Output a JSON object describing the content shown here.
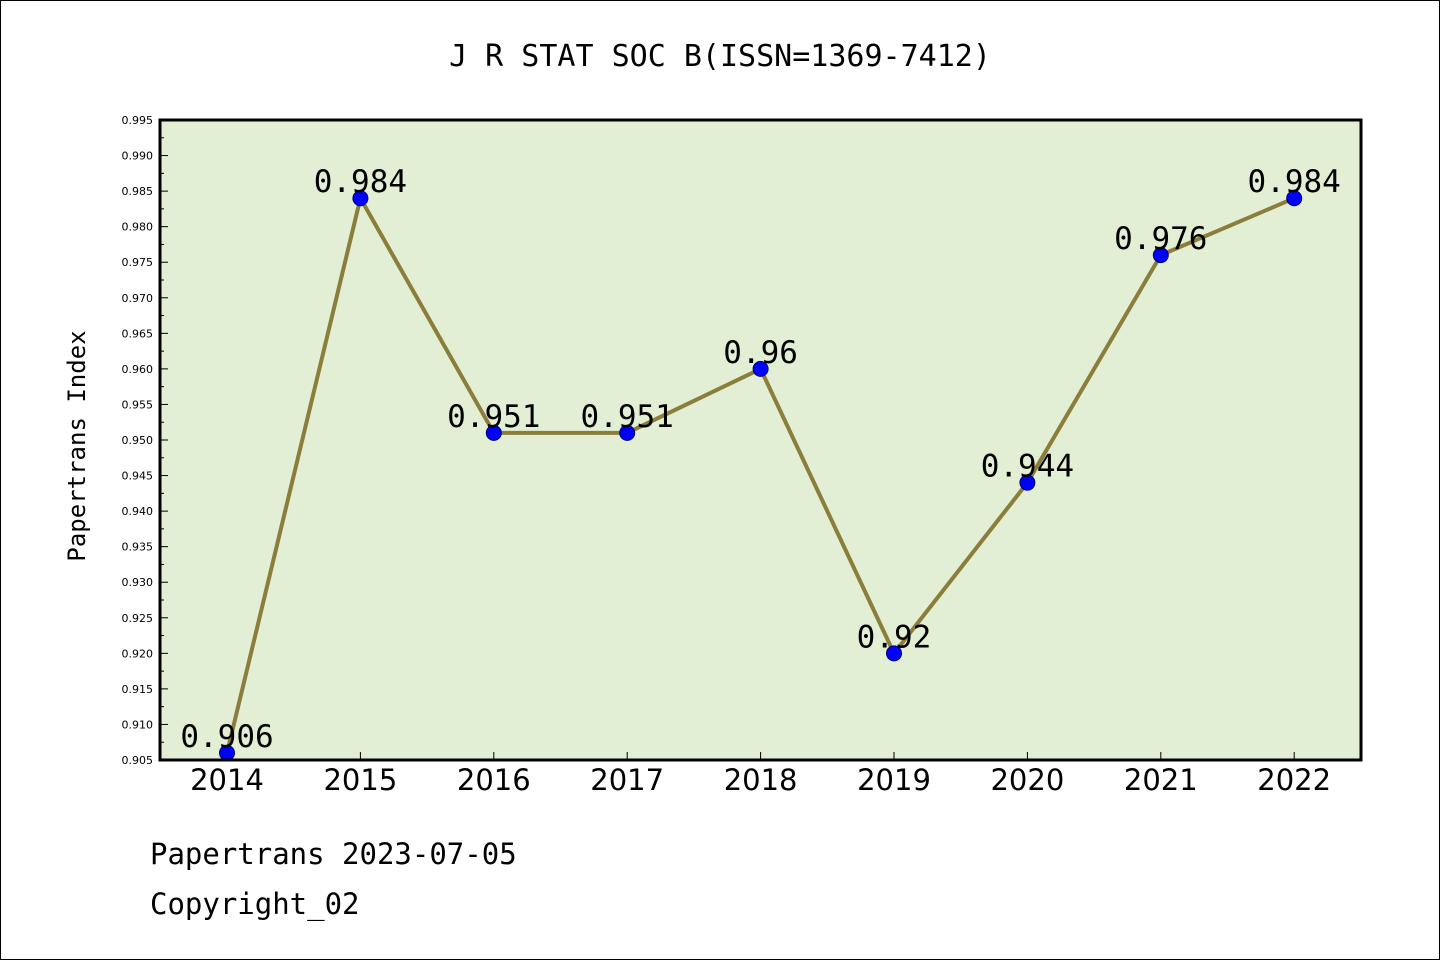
{
  "chart_data": {
    "type": "line",
    "title": "J R STAT SOC B(ISSN=1369-7412)",
    "xlabel": "",
    "ylabel": "Papertrans Index",
    "categories": [
      "2014",
      "2015",
      "2016",
      "2017",
      "2018",
      "2019",
      "2020",
      "2021",
      "2022"
    ],
    "values": [
      0.906,
      0.984,
      0.951,
      0.951,
      0.96,
      0.92,
      0.944,
      0.976,
      0.984
    ],
    "data_labels": [
      "0.906",
      "0.984",
      "0.951",
      "0.951",
      "0.96",
      "0.92",
      "0.944",
      "0.976",
      "0.984"
    ],
    "ylim": [
      0.905,
      0.995
    ],
    "yticks": [
      "0.905",
      "0.910",
      "0.915",
      "0.920",
      "0.925",
      "0.930",
      "0.935",
      "0.940",
      "0.945",
      "0.950",
      "0.955",
      "0.960",
      "0.965",
      "0.970",
      "0.975",
      "0.980",
      "0.985",
      "0.990",
      "0.995"
    ],
    "grid": false,
    "colors": {
      "plot_background": "#e2efd5",
      "line": "#8b7d3a",
      "marker": "#0000ff"
    }
  },
  "footer": {
    "line1": "Papertrans 2023-07-05",
    "line2": "Copyright_02"
  }
}
